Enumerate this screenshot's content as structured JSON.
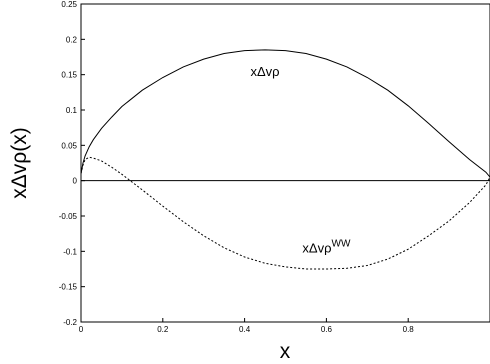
{
  "chart_data": {
    "type": "line",
    "xlabel": "x",
    "ylabel": "xΔvρ(x)",
    "xlim": [
      0,
      1
    ],
    "ylim": [
      -0.2,
      0.25
    ],
    "x_ticks": [
      0,
      0.2,
      0.4,
      0.6,
      0.8
    ],
    "x_tick_labels": [
      "0",
      "0.2",
      "0.4",
      "0.6",
      "0.8"
    ],
    "y_ticks": [
      -0.2,
      -0.15,
      -0.1,
      -0.05,
      0,
      0.05,
      0.1,
      0.15,
      0.2,
      0.25
    ],
    "y_tick_labels": [
      "-0.2",
      "-0.15",
      "-0.1",
      "-0.05",
      "0",
      "0.05",
      "0.1",
      "0.15",
      "0.2",
      "0.25"
    ],
    "grid": false,
    "reference_line_y": 0,
    "series": [
      {
        "style": "solid",
        "x": [
          0.0,
          0.005,
          0.01,
          0.02,
          0.03,
          0.05,
          0.075,
          0.1,
          0.15,
          0.2,
          0.25,
          0.3,
          0.35,
          0.4,
          0.45,
          0.5,
          0.55,
          0.6,
          0.65,
          0.7,
          0.75,
          0.8,
          0.85,
          0.9,
          0.95,
          0.99,
          1.0
        ],
        "values": [
          0.01,
          0.025,
          0.035,
          0.048,
          0.058,
          0.074,
          0.09,
          0.105,
          0.128,
          0.146,
          0.161,
          0.172,
          0.18,
          0.184,
          0.185,
          0.184,
          0.18,
          0.172,
          0.161,
          0.146,
          0.128,
          0.106,
          0.081,
          0.055,
          0.03,
          0.012,
          0.005
        ]
      },
      {
        "style": "dashed",
        "x": [
          0.0,
          0.005,
          0.01,
          0.02,
          0.03,
          0.05,
          0.075,
          0.1,
          0.125,
          0.15,
          0.2,
          0.25,
          0.3,
          0.35,
          0.4,
          0.45,
          0.5,
          0.55,
          0.6,
          0.65,
          0.7,
          0.75,
          0.8,
          0.85,
          0.9,
          0.95,
          0.99,
          1.0
        ],
        "values": [
          0.01,
          0.022,
          0.03,
          0.033,
          0.032,
          0.028,
          0.019,
          0.009,
          -0.002,
          -0.013,
          -0.036,
          -0.058,
          -0.078,
          -0.095,
          -0.108,
          -0.117,
          -0.122,
          -0.125,
          -0.125,
          -0.124,
          -0.12,
          -0.111,
          -0.097,
          -0.078,
          -0.057,
          -0.031,
          -0.006,
          0.005
        ]
      }
    ],
    "annotations": [
      {
        "text": "xΔvρ",
        "sup": "",
        "x": 0.45,
        "y": 0.148
      },
      {
        "text": "xΔvρ",
        "sup": "WW",
        "x": 0.6,
        "y": -0.102
      }
    ]
  }
}
